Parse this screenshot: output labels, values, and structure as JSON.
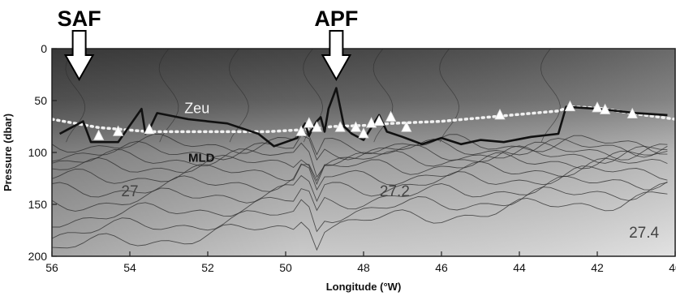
{
  "chart_data": {
    "type": "contour",
    "xlabel": "Longitude (°W)",
    "ylabel": "Pressure (dbar)",
    "xlim": [
      56,
      40
    ],
    "ylim": [
      200,
      0
    ],
    "x_ticks": [
      "56",
      "54",
      "52",
      "50",
      "48",
      "46",
      "44",
      "42",
      "40"
    ],
    "y_ticks": [
      "0",
      "50",
      "100",
      "150",
      "200"
    ],
    "fronts": [
      {
        "label": "SAF",
        "lon": 55.3
      },
      {
        "label": "APF",
        "lon": 48.7
      }
    ],
    "contour_labels": [
      {
        "text": "27",
        "lon": 54.0,
        "pressure": 142
      },
      {
        "text": "27.2",
        "lon": 47.2,
        "pressure": 142
      },
      {
        "text": "27.4",
        "lon": 40.8,
        "pressure": 182
      }
    ],
    "series": [
      {
        "name": "Zeu",
        "style": "dotted",
        "x": [
          56.0,
          54.8,
          53.5,
          52.0,
          50.5,
          49.5,
          48.8,
          48.0,
          47.3,
          46.0,
          44.5,
          43.0,
          42.7,
          42.0,
          41.5,
          41.0,
          40.0
        ],
        "y": [
          68,
          76,
          80,
          80,
          80,
          78,
          75,
          74,
          72,
          70,
          65,
          60,
          56,
          57,
          60,
          63,
          68
        ]
      },
      {
        "name": "MLD",
        "style": "solid",
        "x": [
          55.8,
          55.6,
          55.2,
          55.0,
          54.3,
          53.7,
          53.6,
          53.5,
          53.3,
          52.5,
          51.5,
          50.7,
          50.3,
          49.7,
          49.6,
          49.5,
          49.4,
          49.3,
          49.2,
          49.1,
          49.0,
          48.9,
          48.7,
          48.5,
          48.3,
          48.0,
          47.6,
          47.4,
          47.0,
          46.5,
          46.0,
          45.5,
          45.0,
          44.4,
          43.7,
          43.0,
          42.8,
          42.0,
          41.0,
          40.2
        ],
        "y": [
          82,
          78,
          70,
          90,
          90,
          58,
          82,
          78,
          62,
          68,
          72,
          82,
          94,
          86,
          78,
          72,
          84,
          76,
          70,
          66,
          80,
          58,
          38,
          75,
          82,
          88,
          64,
          80,
          85,
          92,
          86,
          92,
          88,
          90,
          85,
          82,
          56,
          58,
          62,
          64
        ]
      }
    ],
    "samples": {
      "x": [
        54.8,
        54.3,
        53.5,
        49.6,
        49.4,
        49.2,
        48.6,
        48.2,
        48.0,
        47.8,
        47.6,
        47.3,
        46.9,
        44.5,
        42.7,
        42.0,
        41.8,
        41.1
      ],
      "y": [
        84,
        80,
        78,
        80,
        72,
        76,
        76,
        76,
        82,
        72,
        70,
        66,
        76,
        64,
        56,
        57,
        59,
        63
      ]
    },
    "annotations": [
      "Zeu",
      "MLD"
    ],
    "colors": {
      "surface": "#555555",
      "deep": "#e8e8e8",
      "mld_line": "#111111",
      "zeu_line": "#f0f0f0",
      "marker": "#ffffff",
      "arrow": "#ffffff"
    }
  }
}
